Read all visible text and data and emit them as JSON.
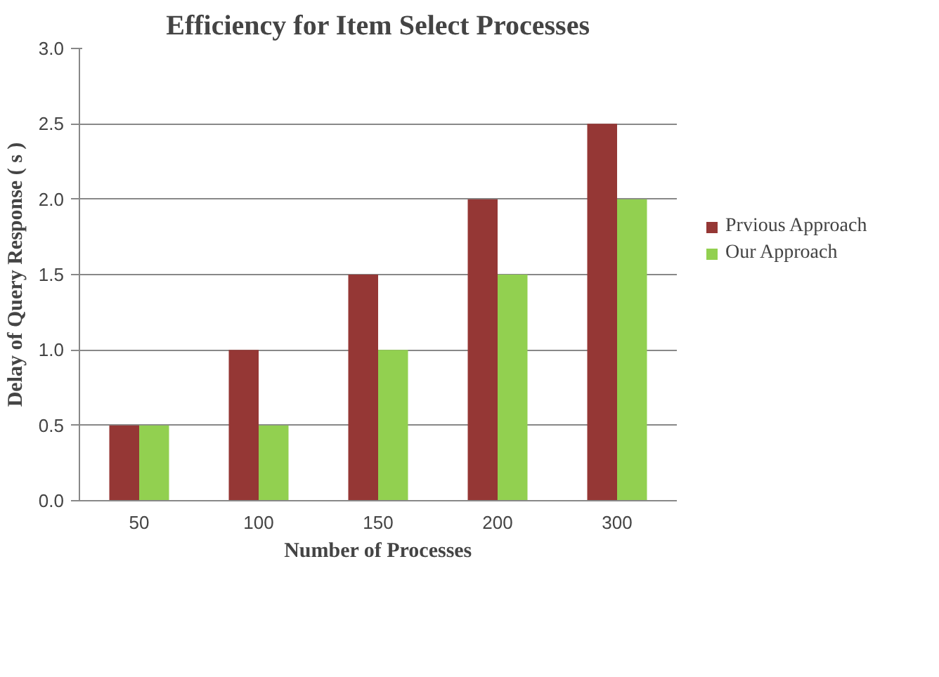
{
  "chart_data": {
    "type": "bar",
    "title": "Efficiency for Item Select Processes",
    "xlabel": "Number of Processes",
    "ylabel": "Delay of Query Response ( s )",
    "categories": [
      "50",
      "100",
      "150",
      "200",
      "300"
    ],
    "series": [
      {
        "name": "Prvious Approach",
        "color": "#953735",
        "values": [
          0.5,
          1.0,
          1.5,
          2.0,
          2.5
        ]
      },
      {
        "name": "Our Approach",
        "color": "#92d050",
        "values": [
          0.5,
          0.5,
          1.0,
          1.5,
          2.0
        ]
      }
    ],
    "ylim": [
      0,
      3
    ],
    "yticks": [
      {
        "value": 0,
        "label": "0.0"
      },
      {
        "value": 0.5,
        "label": "0.5"
      },
      {
        "value": 1,
        "label": "1.0"
      },
      {
        "value": 1.5,
        "label": "1.5"
      },
      {
        "value": 2,
        "label": "2.0"
      },
      {
        "value": 2.5,
        "label": "2.5"
      },
      {
        "value": 3,
        "label": "3.0"
      }
    ],
    "grid": "y",
    "legend": "right"
  }
}
